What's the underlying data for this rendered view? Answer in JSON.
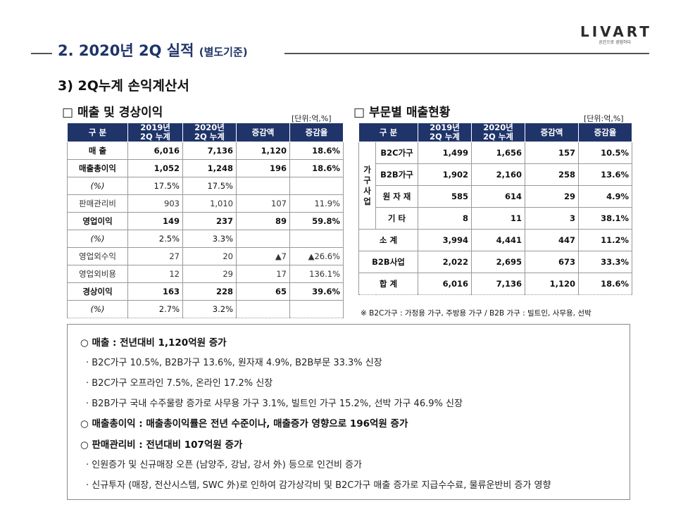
{
  "header": {
    "title": "2. 2020년 2Q 실적",
    "title_sub": "(별도기준)",
    "logo": "LIVART",
    "logo_tag": "공간으로 경험하다"
  },
  "section_title": "3) 2Q누계 손익계산서",
  "left_box": {
    "title": "□ 매출 및 경상이익",
    "unit": "[단위:억,%]",
    "headers": [
      "구 분",
      "2019년\n2Q 누계",
      "2020년\n2Q 누계",
      "증감액",
      "증감율"
    ],
    "rows": [
      {
        "label": "매 출",
        "v": [
          "6,016",
          "7,136",
          "1,120",
          "18.6%"
        ],
        "style": "bold"
      },
      {
        "label": "매출총이익",
        "v": [
          "1,052",
          "1,248",
          "196",
          "18.6%"
        ],
        "style": "bold"
      },
      {
        "label": "(%)",
        "v": [
          "17.5%",
          "17.5%",
          "",
          ""
        ],
        "style": "pct"
      },
      {
        "label": "판매관리비",
        "v": [
          "903",
          "1,010",
          "107",
          "11.9%"
        ],
        "style": "light"
      },
      {
        "label": "영업이익",
        "v": [
          "149",
          "237",
          "89",
          "59.8%"
        ],
        "style": "bold"
      },
      {
        "label": "(%)",
        "v": [
          "2.5%",
          "3.3%",
          "",
          ""
        ],
        "style": "pct"
      },
      {
        "label": "영업외수익",
        "v": [
          "27",
          "20",
          "▲7",
          "▲26.6%"
        ],
        "style": "light"
      },
      {
        "label": "영업외비용",
        "v": [
          "12",
          "29",
          "17",
          "136.1%"
        ],
        "style": "light"
      },
      {
        "label": "경상이익",
        "v": [
          "163",
          "228",
          "65",
          "39.6%"
        ],
        "style": "bold"
      },
      {
        "label": "(%)",
        "v": [
          "2.7%",
          "3.2%",
          "",
          ""
        ],
        "style": "pct"
      }
    ]
  },
  "right_box": {
    "title": "□ 부문별 매출현황",
    "unit": "[단위:억,%]",
    "headers": [
      "구 분",
      "2019년\n2Q 누계",
      "2020년\n2Q 누계",
      "증감액",
      "증감율"
    ],
    "group_label": "가\n구\n사\n업",
    "rows": [
      {
        "label": "B2C가구",
        "v": [
          "1,499",
          "1,656",
          "157",
          "10.5%"
        ]
      },
      {
        "label": "B2B가구",
        "v": [
          "1,902",
          "2,160",
          "258",
          "13.6%"
        ]
      },
      {
        "label": "원 자 재",
        "v": [
          "585",
          "614",
          "29",
          "4.9%"
        ]
      },
      {
        "label": "기 타",
        "v": [
          "8",
          "11",
          "3",
          "38.1%"
        ]
      },
      {
        "label": "소 계",
        "v": [
          "3,994",
          "4,441",
          "447",
          "11.2%"
        ]
      },
      {
        "label": "B2B사업",
        "v": [
          "2,022",
          "2,695",
          "673",
          "33.3%"
        ]
      },
      {
        "label": "합 계",
        "v": [
          "6,016",
          "7,136",
          "1,120",
          "18.6%"
        ]
      }
    ],
    "footnote": "※ B2C가구 : 가정용 가구, 주방용 가구 / B2B 가구 : 빌트인, 사무용, 선박"
  },
  "summary": {
    "lines": [
      {
        "type": "head",
        "text": "○ 매출 : 전년대비 1,120억원 증가"
      },
      {
        "type": "item",
        "text": "· B2C가구 10.5%, B2B가구 13.6%, 원자재 4.9%, B2B부문 33.3% 신장"
      },
      {
        "type": "item",
        "text": "· B2C가구 오프라인 7.5%, 온라인 17.2% 신장"
      },
      {
        "type": "item",
        "text": "· B2B가구 국내 수주물량 증가로 사무용 가구 3.1%, 빌트인 가구 15.2%, 선박 가구 46.9% 신장"
      },
      {
        "type": "head",
        "text": "○ 매출총이익 : 매출총이익률은 전년 수준이나, 매출증가 영향으로 196억원 증가"
      },
      {
        "type": "head",
        "text": "○ 판매관리비 : 전년대비 107억원 증가"
      },
      {
        "type": "item",
        "text": "· 인원증가 및 신규매장 오픈 (남양주, 강남, 강서 外) 등으로 인건비 증가"
      },
      {
        "type": "item",
        "text": "· 신규투자 (매장, 전산시스템, SWC 外)로 인하여 감가상각비 및 B2C가구 매출 증가로 지급수수료, 물류운반비 증가 영향"
      }
    ]
  }
}
